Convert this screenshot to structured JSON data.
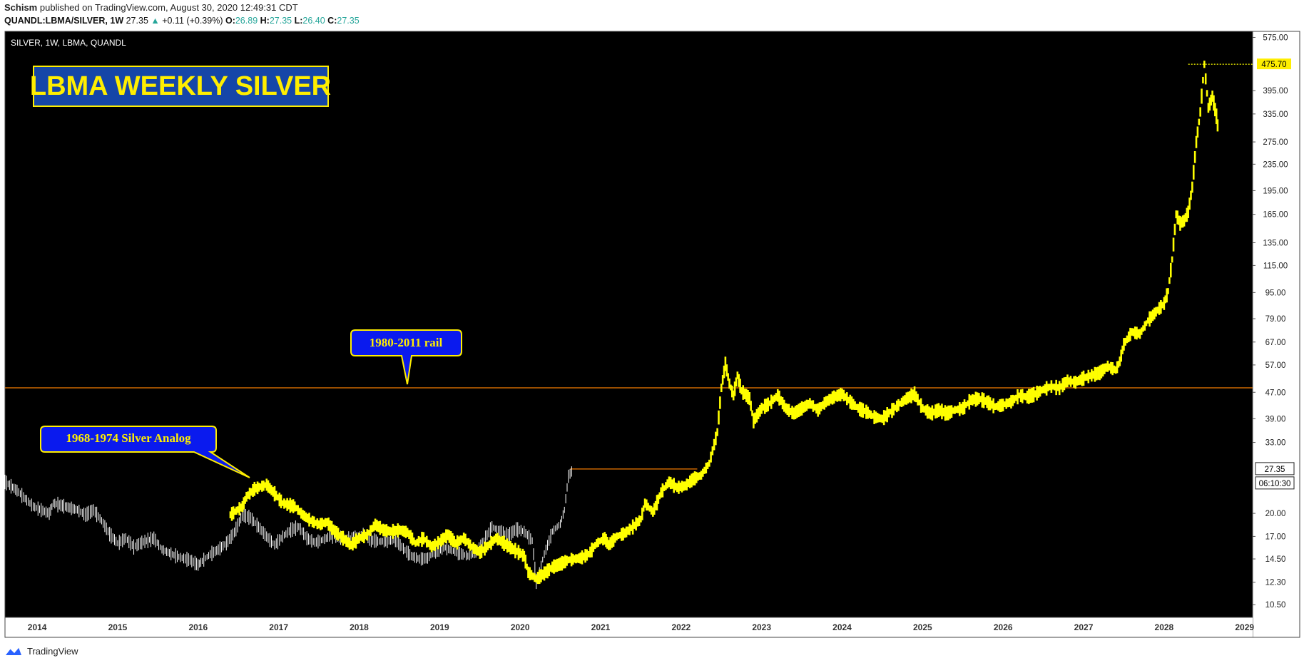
{
  "header": {
    "author": "Schism",
    "published_text": "published on TradingView.com, August 30, 2020 12:49:31 CDT"
  },
  "quote": {
    "symbol": "QUANDL:LBMA/SILVER, 1W",
    "last": "27.35",
    "arrow": "▲",
    "change": "+0.11 (+0.39%)",
    "open_label": "O:",
    "open": "26.89",
    "high_label": "H:",
    "high": "27.35",
    "low_label": "L:",
    "low": "26.40",
    "close_label": "C:",
    "close": "27.35"
  },
  "chart_data": {
    "type": "line",
    "title": "LBMA WEEKLY SILVER",
    "symbol_label": "SILVER, 1W, LBMA, QUANDL",
    "background": "#000000",
    "grid": false,
    "y_scale": "log",
    "ylim": [
      9.6,
      600
    ],
    "xlim": [
      2013.6,
      2029.1
    ],
    "x_ticks": [
      "2014",
      "2015",
      "2016",
      "2017",
      "2018",
      "2019",
      "2020",
      "2021",
      "2022",
      "2023",
      "2024",
      "2025",
      "2026",
      "2027",
      "2028",
      "2029"
    ],
    "y_ticks": [
      "575.00",
      "475.70",
      "395.00",
      "335.00",
      "275.00",
      "235.00",
      "195.00",
      "165.00",
      "135.00",
      "115.00",
      "95.00",
      "79.00",
      "67.00",
      "57.00",
      "47.00",
      "39.00",
      "33.00",
      "27.35",
      "20.00",
      "17.00",
      "14.50",
      "12.30",
      "10.50"
    ],
    "price_label": "27.35",
    "countdown_label": "06:10:30",
    "max_label": "475.70",
    "series": [
      {
        "kind": "actual_price",
        "color": "#ffffff",
        "points": [
          [
            2013.6,
            25
          ],
          [
            2013.75,
            23.5
          ],
          [
            2013.95,
            21
          ],
          [
            2014.15,
            20
          ],
          [
            2014.2,
            21.5
          ],
          [
            2014.35,
            21
          ],
          [
            2014.5,
            20.5
          ],
          [
            2014.6,
            19.8
          ],
          [
            2014.7,
            20.5
          ],
          [
            2014.8,
            19
          ],
          [
            2014.9,
            17.3
          ],
          [
            2015.0,
            16.2
          ],
          [
            2015.1,
            16.8
          ],
          [
            2015.2,
            15.8
          ],
          [
            2015.3,
            16.3
          ],
          [
            2015.45,
            16.8
          ],
          [
            2015.55,
            15.5
          ],
          [
            2015.7,
            14.9
          ],
          [
            2015.8,
            14.6
          ],
          [
            2015.9,
            14.4
          ],
          [
            2016.0,
            13.9
          ],
          [
            2016.05,
            14.3
          ],
          [
            2016.15,
            15.0
          ],
          [
            2016.25,
            15.5
          ],
          [
            2016.35,
            16.2
          ],
          [
            2016.45,
            17.5
          ],
          [
            2016.55,
            19.8
          ],
          [
            2016.65,
            19.4
          ],
          [
            2016.75,
            18.2
          ],
          [
            2016.85,
            17.0
          ],
          [
            2016.95,
            16.0
          ],
          [
            2017.05,
            17.0
          ],
          [
            2017.15,
            17.8
          ],
          [
            2017.25,
            18.2
          ],
          [
            2017.35,
            16.8
          ],
          [
            2017.45,
            16.3
          ],
          [
            2017.55,
            16.6
          ],
          [
            2017.65,
            17.1
          ],
          [
            2017.75,
            16.9
          ],
          [
            2017.85,
            16.7
          ],
          [
            2017.95,
            16.8
          ],
          [
            2018.05,
            17.3
          ],
          [
            2018.15,
            16.6
          ],
          [
            2018.25,
            16.4
          ],
          [
            2018.35,
            16.5
          ],
          [
            2018.45,
            16.6
          ],
          [
            2018.55,
            15.6
          ],
          [
            2018.65,
            14.8
          ],
          [
            2018.75,
            14.5
          ],
          [
            2018.85,
            14.6
          ],
          [
            2018.95,
            15.3
          ],
          [
            2019.05,
            15.8
          ],
          [
            2019.15,
            15.4
          ],
          [
            2019.25,
            15.1
          ],
          [
            2019.35,
            14.8
          ],
          [
            2019.45,
            15.2
          ],
          [
            2019.55,
            16.5
          ],
          [
            2019.65,
            18.2
          ],
          [
            2019.75,
            17.6
          ],
          [
            2019.85,
            17.1
          ],
          [
            2019.95,
            17.9
          ],
          [
            2020.05,
            17.6
          ],
          [
            2020.15,
            16.5
          ],
          [
            2020.2,
            12.4
          ],
          [
            2020.3,
            15.0
          ],
          [
            2020.4,
            17.6
          ],
          [
            2020.5,
            18.6
          ],
          [
            2020.55,
            20.5
          ],
          [
            2020.6,
            26.0
          ],
          [
            2020.66,
            27.35
          ]
        ]
      },
      {
        "kind": "1968-1974 analog",
        "color": "#ffff00",
        "points": [
          [
            2016.4,
            19.8
          ],
          [
            2016.55,
            21.0
          ],
          [
            2016.6,
            22.5
          ],
          [
            2016.7,
            23.8
          ],
          [
            2016.85,
            24.5
          ],
          [
            2016.95,
            23.0
          ],
          [
            2017.05,
            21.5
          ],
          [
            2017.2,
            21.0
          ],
          [
            2017.3,
            19.8
          ],
          [
            2017.4,
            19.0
          ],
          [
            2017.5,
            18.5
          ],
          [
            2017.6,
            18.8
          ],
          [
            2017.7,
            17.6
          ],
          [
            2017.8,
            16.8
          ],
          [
            2017.9,
            16.0
          ],
          [
            2018.0,
            16.8
          ],
          [
            2018.1,
            17.2
          ],
          [
            2018.2,
            18.5
          ],
          [
            2018.3,
            17.8
          ],
          [
            2018.4,
            17.6
          ],
          [
            2018.5,
            17.8
          ],
          [
            2018.6,
            17.5
          ],
          [
            2018.7,
            16.2
          ],
          [
            2018.8,
            16.8
          ],
          [
            2018.9,
            15.8
          ],
          [
            2019.0,
            16.4
          ],
          [
            2019.1,
            17.2
          ],
          [
            2019.2,
            16.2
          ],
          [
            2019.3,
            16.8
          ],
          [
            2019.4,
            15.8
          ],
          [
            2019.5,
            15.2
          ],
          [
            2019.6,
            15.9
          ],
          [
            2019.7,
            16.8
          ],
          [
            2019.8,
            16.2
          ],
          [
            2019.9,
            15.6
          ],
          [
            2020.0,
            15.1
          ],
          [
            2020.05,
            14.8
          ],
          [
            2020.1,
            13.2
          ],
          [
            2020.2,
            12.6
          ],
          [
            2020.3,
            13.1
          ],
          [
            2020.4,
            13.7
          ],
          [
            2020.5,
            14.0
          ],
          [
            2020.6,
            14.4
          ],
          [
            2020.75,
            14.6
          ],
          [
            2020.85,
            15.0
          ],
          [
            2020.95,
            16.2
          ],
          [
            2021.05,
            16.8
          ],
          [
            2021.1,
            16.0
          ],
          [
            2021.2,
            17.0
          ],
          [
            2021.3,
            17.4
          ],
          [
            2021.4,
            18.2
          ],
          [
            2021.5,
            19.2
          ],
          [
            2021.55,
            21.5
          ],
          [
            2021.65,
            20.2
          ],
          [
            2021.7,
            21.6
          ],
          [
            2021.75,
            23.2
          ],
          [
            2021.85,
            25.0
          ],
          [
            2021.95,
            24.0
          ],
          [
            2022.05,
            24.3
          ],
          [
            2022.15,
            25.5
          ],
          [
            2022.25,
            26.2
          ],
          [
            2022.35,
            28.5
          ],
          [
            2022.45,
            35.5
          ],
          [
            2022.5,
            48.5
          ],
          [
            2022.55,
            57.5
          ],
          [
            2022.6,
            50.0
          ],
          [
            2022.65,
            46.0
          ],
          [
            2022.7,
            53.0
          ],
          [
            2022.75,
            47.5
          ],
          [
            2022.85,
            45.0
          ],
          [
            2022.9,
            38.5
          ],
          [
            2023.0,
            42.0
          ],
          [
            2023.1,
            43.5
          ],
          [
            2023.2,
            46.0
          ],
          [
            2023.3,
            42.0
          ],
          [
            2023.4,
            40.5
          ],
          [
            2023.5,
            42.0
          ],
          [
            2023.6,
            43.5
          ],
          [
            2023.7,
            41.5
          ],
          [
            2023.8,
            44.0
          ],
          [
            2023.9,
            45.5
          ],
          [
            2024.0,
            46.5
          ],
          [
            2024.1,
            44.0
          ],
          [
            2024.2,
            42.0
          ],
          [
            2024.3,
            41.0
          ],
          [
            2024.4,
            39.5
          ],
          [
            2024.5,
            39.0
          ],
          [
            2024.6,
            41.0
          ],
          [
            2024.7,
            43.0
          ],
          [
            2024.8,
            45.0
          ],
          [
            2024.9,
            46.5
          ],
          [
            2025.0,
            42.0
          ],
          [
            2025.1,
            40.5
          ],
          [
            2025.2,
            41.5
          ],
          [
            2025.3,
            40.5
          ],
          [
            2025.4,
            41.5
          ],
          [
            2025.5,
            42.0
          ],
          [
            2025.6,
            44.5
          ],
          [
            2025.7,
            45.0
          ],
          [
            2025.8,
            44.0
          ],
          [
            2025.9,
            42.5
          ],
          [
            2026.0,
            43.0
          ],
          [
            2026.1,
            44.0
          ],
          [
            2026.2,
            46.0
          ],
          [
            2026.3,
            45.5
          ],
          [
            2026.4,
            46.5
          ],
          [
            2026.5,
            48.0
          ],
          [
            2026.6,
            49.0
          ],
          [
            2026.7,
            48.5
          ],
          [
            2026.8,
            51.0
          ],
          [
            2026.9,
            50.5
          ],
          [
            2027.0,
            52.0
          ],
          [
            2027.1,
            53.0
          ],
          [
            2027.2,
            54.0
          ],
          [
            2027.3,
            56.5
          ],
          [
            2027.4,
            55.0
          ],
          [
            2027.45,
            58.5
          ],
          [
            2027.5,
            66.0
          ],
          [
            2027.6,
            72.0
          ],
          [
            2027.7,
            71.0
          ],
          [
            2027.8,
            78.0
          ],
          [
            2027.9,
            83.0
          ],
          [
            2028.0,
            88.0
          ],
          [
            2028.05,
            96.0
          ],
          [
            2028.1,
            120.0
          ],
          [
            2028.15,
            165.0
          ],
          [
            2028.2,
            155.0
          ],
          [
            2028.25,
            158.0
          ],
          [
            2028.3,
            168.0
          ],
          [
            2028.35,
            200.0
          ],
          [
            2028.4,
            275.0
          ],
          [
            2028.45,
            340.0
          ],
          [
            2028.5,
            475.7
          ],
          [
            2028.55,
            350.0
          ],
          [
            2028.6,
            380.0
          ],
          [
            2028.65,
            330.0
          ],
          [
            2028.68,
            290.0
          ]
        ]
      }
    ],
    "horizontal_lines": [
      {
        "name": "1980-2011 rail",
        "value": 48.5,
        "color": "#f57c00",
        "from": 2013.6,
        "to": 2029.1
      },
      {
        "name": "resistance",
        "value": 27.35,
        "color": "#f57c00",
        "from": 2020.62,
        "to": 2022.2
      },
      {
        "name": "max-dotted",
        "value": 475.7,
        "color": "#ffff00",
        "from": 2028.3,
        "to": 2029.1
      }
    ],
    "annotations": [
      {
        "text": "1980-2011 rail",
        "x": 2018.6,
        "y": 48.5
      },
      {
        "text": "1968-1974 Silver Analog",
        "x": 2016.65,
        "y": 24.0
      }
    ]
  },
  "footer": {
    "brand": "TradingView"
  },
  "colors": {
    "accent_green": "#26a69a",
    "analog": "#ffff00",
    "rail": "#f57c00",
    "callout_fill": "#0a1aee"
  }
}
